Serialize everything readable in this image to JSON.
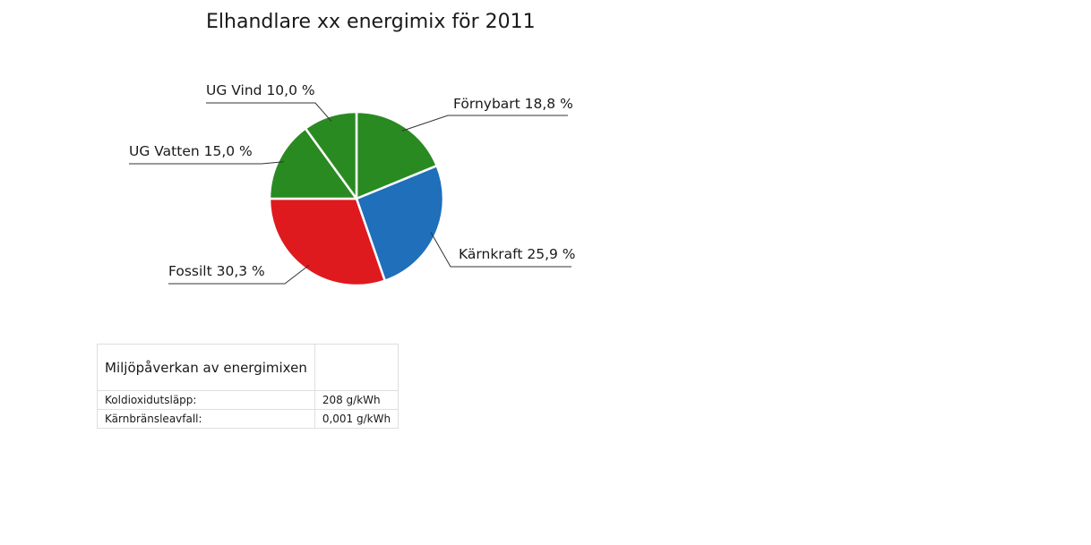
{
  "chart_data": {
    "type": "pie",
    "title": "Elhandlare xx energimix för 2011",
    "slices": [
      {
        "label": "Förnybart 18,8 %",
        "name": "Förnybart",
        "value": 18.8,
        "color": "#2a8a22"
      },
      {
        "label": "Kärnkraft 25,9 %",
        "name": "Kärnkraft",
        "value": 25.9,
        "color": "#1f6fba"
      },
      {
        "label": "Fossilt 30,3 %",
        "name": "Fossilt",
        "value": 30.3,
        "color": "#df1a1e"
      },
      {
        "label": "UG Vatten 15,0 %",
        "name": "UG Vatten",
        "value": 15.0,
        "color": "#2a8a22"
      },
      {
        "label": "UG Vind 10,0 %",
        "name": "UG Vind",
        "value": 10.0,
        "color": "#2a8a22"
      }
    ]
  },
  "table": {
    "header": "Miljöpåverkan av energimixen",
    "header_value": "",
    "rows": [
      {
        "label": "Koldioxidutsläpp:",
        "value": "208 g/kWh"
      },
      {
        "label": "Kärnbränsleavfall:",
        "value": "0,001 g/kWh"
      }
    ]
  }
}
